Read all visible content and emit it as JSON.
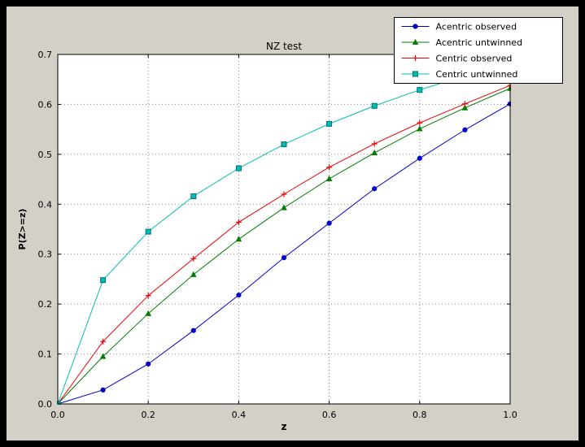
{
  "colors": {
    "window_border": "#000000",
    "figure_background": "#d4d0c8",
    "plot_background": "#ffffff",
    "grid": "#8c8c8c",
    "axes": "#000000",
    "legend_background": "#ffffff"
  },
  "chart_data": {
    "type": "line",
    "title": "NZ test",
    "xlabel": "z",
    "ylabel": "P(Z>=z)",
    "xlim": [
      0.0,
      1.0
    ],
    "ylim": [
      0.0,
      0.7
    ],
    "xticks": [
      0.0,
      0.2,
      0.4,
      0.6,
      0.8,
      1.0
    ],
    "yticks": [
      0.0,
      0.1,
      0.2,
      0.3,
      0.4,
      0.5,
      0.6,
      0.7
    ],
    "grid": "dotted",
    "legend_position": "upper right",
    "x": [
      0.0,
      0.1,
      0.2,
      0.3,
      0.4,
      0.5,
      0.6,
      0.7,
      0.8,
      0.9,
      1.0
    ],
    "series": [
      {
        "name": "Acentric observed",
        "color": "#0000cc",
        "marker": "circle",
        "values": [
          0.0,
          0.028,
          0.08,
          0.147,
          0.218,
          0.293,
          0.362,
          0.431,
          0.492,
          0.549,
          0.601
        ]
      },
      {
        "name": "Acentric untwinned",
        "color": "#007f00",
        "marker": "triangle",
        "values": [
          0.0,
          0.095,
          0.181,
          0.259,
          0.33,
          0.393,
          0.451,
          0.503,
          0.551,
          0.593,
          0.632
        ]
      },
      {
        "name": "Centric observed",
        "color": "#ee0000",
        "marker": "plus",
        "values": [
          0.0,
          0.125,
          0.217,
          0.291,
          0.364,
          0.42,
          0.474,
          0.521,
          0.563,
          0.601,
          0.638
        ]
      },
      {
        "name": "Centric untwinned",
        "color": "#00bdbd",
        "marker": "square",
        "marker_edge": "#007070",
        "values": [
          0.0,
          0.248,
          0.345,
          0.416,
          0.472,
          0.52,
          0.561,
          0.597,
          0.629,
          0.657,
          0.683
        ]
      }
    ]
  }
}
